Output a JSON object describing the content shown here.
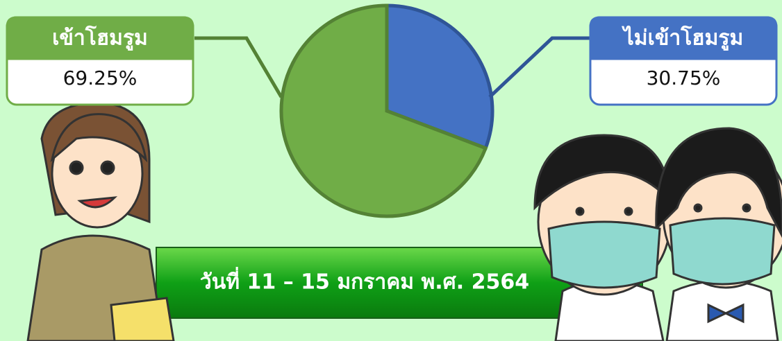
{
  "chart_data": {
    "type": "pie",
    "categories": [
      "เข้าโฮมรูม",
      "ไม่เข้าโฮมรูม"
    ],
    "values": [
      69.25,
      30.75
    ],
    "value_labels": [
      "69.25%",
      "30.75%"
    ],
    "colors": [
      "#70ad47",
      "#4472c4"
    ],
    "subtitle": "วันที่ 11 – 15 มกราคม  พ.ศ. 2564"
  }
}
